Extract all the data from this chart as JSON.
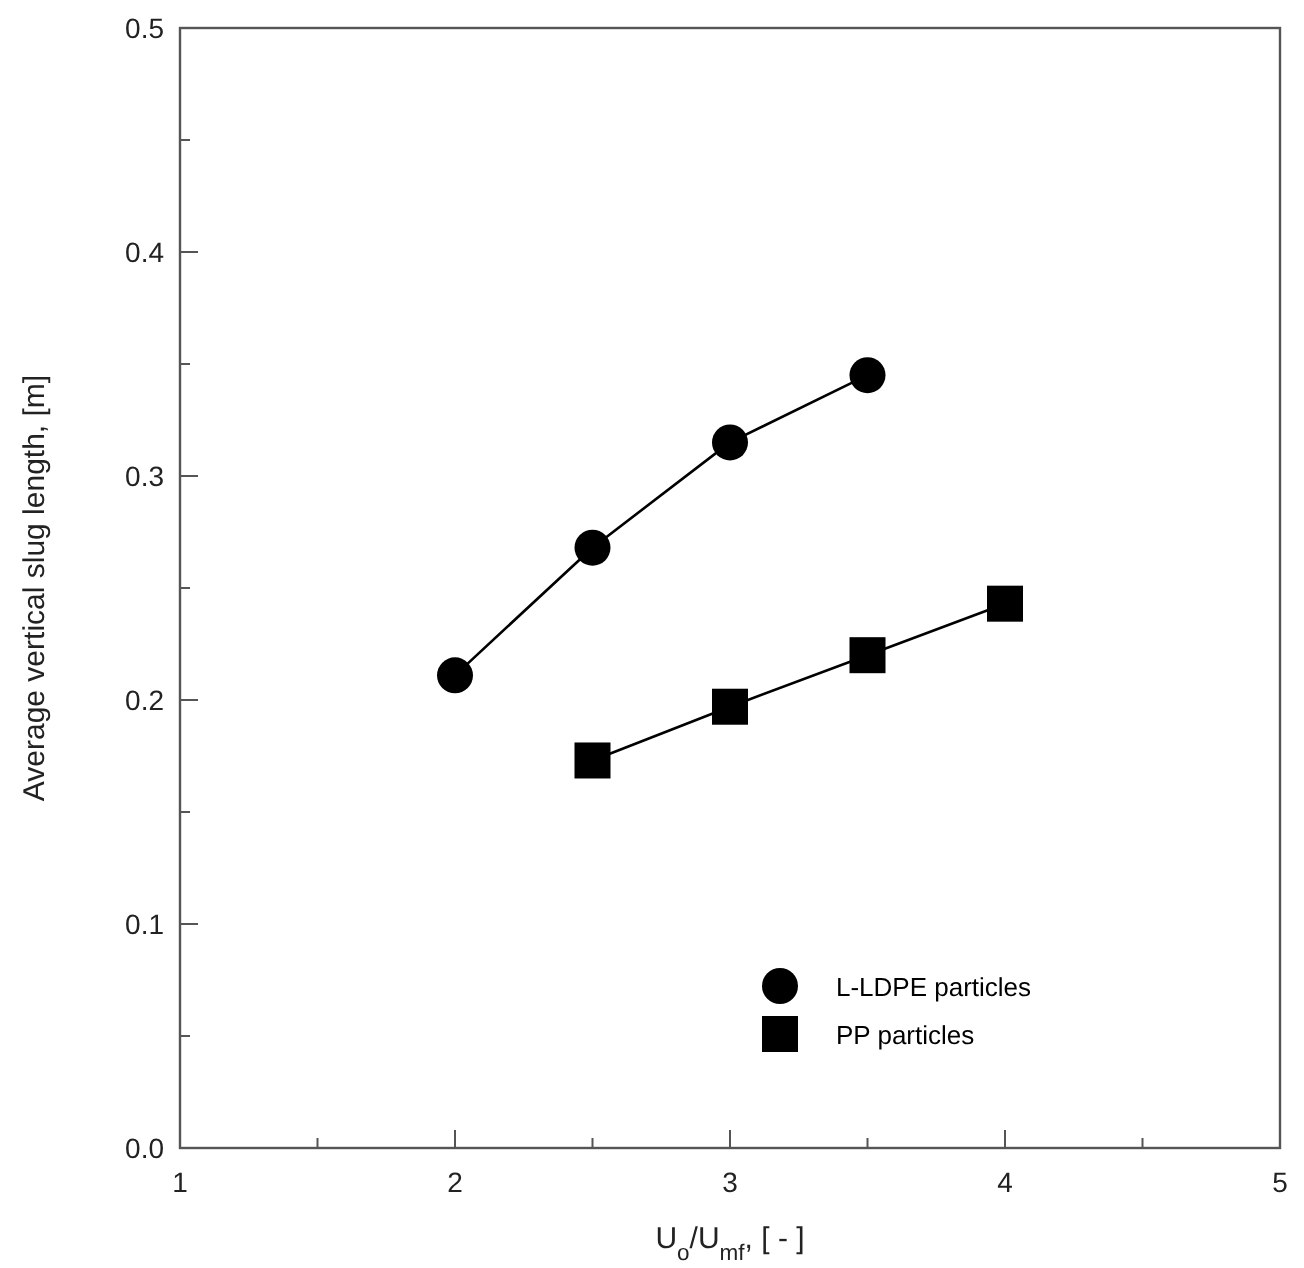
{
  "chart_data": {
    "type": "line",
    "xlabel": "U$_{o}$/U$_{mf}$, [ - ]",
    "ylabel": "Average vertical slug length, [m]",
    "xlim": [
      1,
      5
    ],
    "ylim": [
      0,
      0.5
    ],
    "xticks": [
      1,
      {
        "value": 1.5,
        "label": null
      },
      2,
      {
        "value": 2.5,
        "label": null
      },
      3,
      {
        "value": 3.5,
        "label": null
      },
      4,
      {
        "value": 4.5,
        "label": null
      },
      5
    ],
    "yticks": [
      {
        "value": 0,
        "label": "0.0"
      },
      {
        "value": 0.05,
        "label": null
      },
      0.1,
      {
        "value": 0.15,
        "label": null
      },
      0.2,
      {
        "value": 0.25,
        "label": null
      },
      0.3,
      {
        "value": 0.35,
        "label": null
      },
      0.4,
      {
        "value": 0.45,
        "label": null
      },
      0.5
    ],
    "legend": "bottom right",
    "grid": false,
    "line_style": "solid",
    "series": [
      {
        "name": "L-LDPE particles",
        "color": "#000000",
        "marker": "circle",
        "x": [
          2,
          2.5,
          3,
          3.5
        ],
        "values": [
          0.211,
          0.268,
          0.315,
          0.345
        ]
      },
      {
        "name": "PP particles",
        "color": "#000000",
        "marker": "square",
        "x": [
          2.5,
          3,
          3.5,
          4
        ],
        "values": [
          0.173,
          0.197,
          0.22,
          0.243
        ]
      }
    ]
  }
}
